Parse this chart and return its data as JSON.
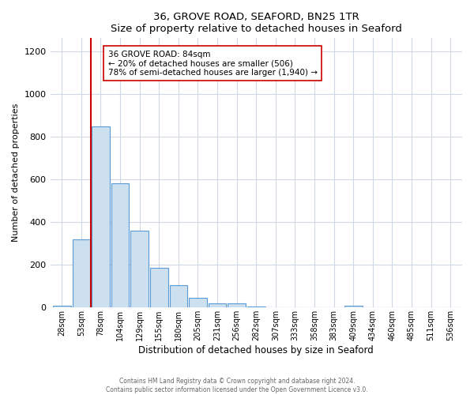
{
  "title": "36, GROVE ROAD, SEAFORD, BN25 1TR",
  "subtitle": "Size of property relative to detached houses in Seaford",
  "xlabel": "Distribution of detached houses by size in Seaford",
  "ylabel": "Number of detached properties",
  "bin_labels": [
    "28sqm",
    "53sqm",
    "78sqm",
    "104sqm",
    "129sqm",
    "155sqm",
    "180sqm",
    "205sqm",
    "231sqm",
    "256sqm",
    "282sqm",
    "307sqm",
    "333sqm",
    "358sqm",
    "383sqm",
    "409sqm",
    "434sqm",
    "460sqm",
    "485sqm",
    "511sqm",
    "536sqm"
  ],
  "bar_values": [
    10,
    320,
    848,
    580,
    360,
    185,
    103,
    46,
    20,
    18,
    5,
    0,
    0,
    0,
    0,
    10,
    0,
    0,
    0,
    0,
    0
  ],
  "bar_color": "#cce0f0",
  "bar_edge_color": "#5b9bd5",
  "property_line_color": "#cc0000",
  "annotation_title": "36 GROVE ROAD: 84sqm",
  "annotation_line1": "← 20% of detached houses are smaller (506)",
  "annotation_line2": "78% of semi-detached houses are larger (1,940) →",
  "annotation_box_facecolor": "#ffffff",
  "annotation_box_edge_color": "#cc0000",
  "ylim": [
    0,
    1260
  ],
  "yticks": [
    0,
    200,
    400,
    600,
    800,
    1000,
    1200
  ],
  "footer_line1": "Contains HM Land Registry data © Crown copyright and database right 2024.",
  "footer_line2": "Contains public sector information licensed under the Open Government Licence v3.0.",
  "bg_color": "#ffffff",
  "plot_bg_color": "#ffffff",
  "grid_color": "#d0d8e4"
}
